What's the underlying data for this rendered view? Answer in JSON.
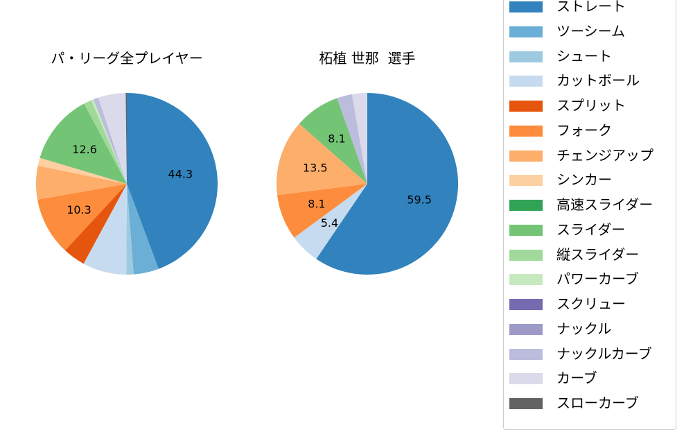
{
  "chart_data": [
    {
      "type": "pie",
      "title": "パ・リーグ全プレイヤー",
      "start_angle": 90,
      "direction": "clockwise",
      "center": [
        183,
        265
      ],
      "radius": 131,
      "slices": [
        {
          "name": "ストレート",
          "value": 44.3,
          "label": "44.3"
        },
        {
          "name": "ツーシーム",
          "value": 4.5
        },
        {
          "name": "シュート",
          "value": 1.3
        },
        {
          "name": "カットボール",
          "value": 7.8
        },
        {
          "name": "スプリット",
          "value": 4.0
        },
        {
          "name": "フォーク",
          "value": 10.3,
          "label": "10.3"
        },
        {
          "name": "チェンジアップ",
          "value": 6.0
        },
        {
          "name": "シンカー",
          "value": 1.4
        },
        {
          "name": "高速スライダー",
          "value": 0
        },
        {
          "name": "スライダー",
          "value": 12.6,
          "label": "12.6"
        },
        {
          "name": "縦スライダー",
          "value": 1.4
        },
        {
          "name": "パワーカーブ",
          "value": 0.4
        },
        {
          "name": "スクリュー",
          "value": 0
        },
        {
          "name": "ナックル",
          "value": 0
        },
        {
          "name": "ナックルカーブ",
          "value": 0.9
        },
        {
          "name": "カーブ",
          "value": 4.9
        },
        {
          "name": "スローカーブ",
          "value": 0.2
        }
      ]
    },
    {
      "type": "pie",
      "title": "柘植 世那  選手",
      "start_angle": 90,
      "direction": "clockwise",
      "center": [
        530,
        265
      ],
      "radius": 131,
      "slices": [
        {
          "name": "ストレート",
          "value": 59.5,
          "label": "59.5"
        },
        {
          "name": "カットボール",
          "value": 5.4,
          "label": "5.4"
        },
        {
          "name": "フォーク",
          "value": 8.1,
          "label": "8.1"
        },
        {
          "name": "チェンジアップ",
          "value": 13.5,
          "label": "13.5"
        },
        {
          "name": "スライダー",
          "value": 8.1,
          "label": "8.1"
        },
        {
          "name": "ナックルカーブ",
          "value": 2.7
        },
        {
          "name": "カーブ",
          "value": 2.7
        }
      ]
    }
  ],
  "legend": {
    "position": "right",
    "items": [
      {
        "name": "ストレート",
        "color": "#3182bd"
      },
      {
        "name": "ツーシーム",
        "color": "#6baed6"
      },
      {
        "name": "シュート",
        "color": "#9ecae1"
      },
      {
        "name": "カットボール",
        "color": "#c6dbef"
      },
      {
        "name": "スプリット",
        "color": "#e6550d"
      },
      {
        "name": "フォーク",
        "color": "#fd8d3c"
      },
      {
        "name": "チェンジアップ",
        "color": "#fdae6b"
      },
      {
        "name": "シンカー",
        "color": "#fdd0a2"
      },
      {
        "name": "高速スライダー",
        "color": "#31a354"
      },
      {
        "name": "スライダー",
        "color": "#74c476"
      },
      {
        "name": "縦スライダー",
        "color": "#a1d99b"
      },
      {
        "name": "パワーカーブ",
        "color": "#c7e9c0"
      },
      {
        "name": "スクリュー",
        "color": "#756bb1"
      },
      {
        "name": "ナックル",
        "color": "#9e9ac8"
      },
      {
        "name": "ナックルカーブ",
        "color": "#bcbddc"
      },
      {
        "name": "カーブ",
        "color": "#dadaeb"
      },
      {
        "name": "スローカーブ",
        "color": "#636363"
      }
    ]
  }
}
